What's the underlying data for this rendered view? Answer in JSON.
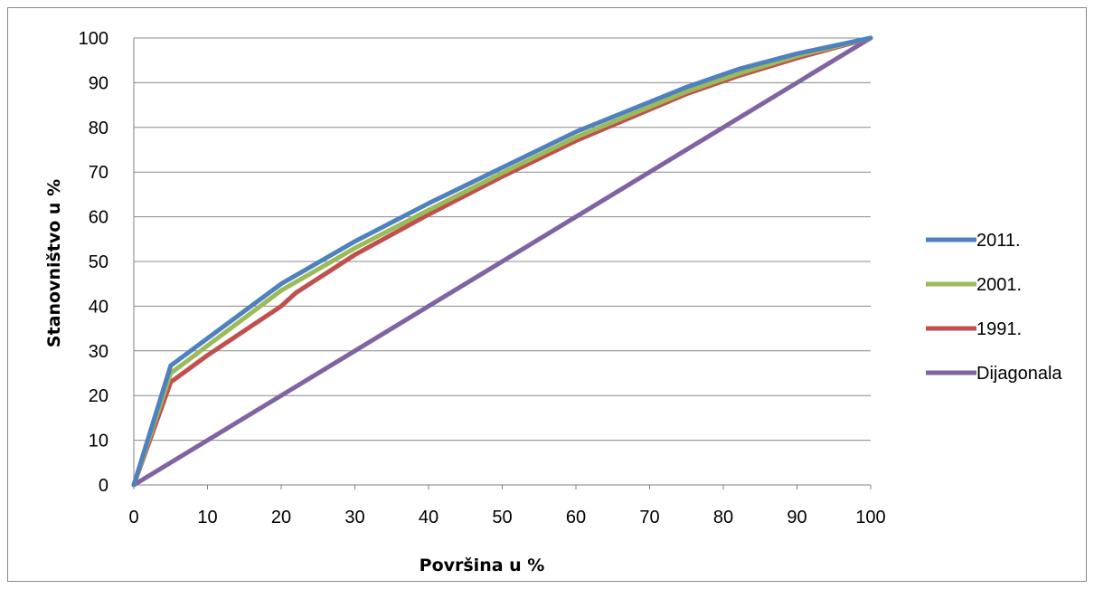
{
  "chart_data": {
    "type": "line",
    "title": "",
    "xlabel": "Površina u %",
    "ylabel": "Stanovništvo u %",
    "xlim": [
      0,
      100
    ],
    "ylim": [
      0,
      100
    ],
    "x_ticks": [
      0,
      10,
      20,
      30,
      40,
      50,
      60,
      70,
      80,
      90,
      100
    ],
    "y_ticks": [
      0,
      10,
      20,
      30,
      40,
      50,
      60,
      70,
      80,
      90,
      100
    ],
    "grid": "horizontal",
    "legend_position": "right",
    "series": [
      {
        "name": "2011.",
        "color": "#4f81bd",
        "x": [
          0,
          5,
          20,
          30,
          40,
          50,
          60,
          75,
          82,
          90,
          100
        ],
        "y": [
          0,
          26.7,
          45,
          54.5,
          63,
          71,
          79,
          89,
          93,
          96.5,
          100
        ]
      },
      {
        "name": "2001.",
        "color": "#9bbb59",
        "x": [
          0,
          5,
          20,
          30,
          40,
          50,
          60,
          75,
          82,
          90,
          100
        ],
        "y": [
          0,
          25,
          43.5,
          53,
          61.5,
          69.8,
          77.8,
          88,
          92,
          96,
          100
        ]
      },
      {
        "name": "1991.",
        "color": "#c0504d",
        "x": [
          0,
          5,
          10,
          20,
          22,
          30,
          40,
          50,
          60,
          75,
          82,
          90,
          100
        ],
        "y": [
          0,
          23,
          29,
          40,
          43,
          51.5,
          60.5,
          69,
          77,
          87.5,
          91.5,
          95.5,
          100
        ]
      },
      {
        "name": "Dijagonala",
        "color": "#8064a2",
        "x": [
          0,
          100
        ],
        "y": [
          0,
          100
        ]
      }
    ]
  }
}
